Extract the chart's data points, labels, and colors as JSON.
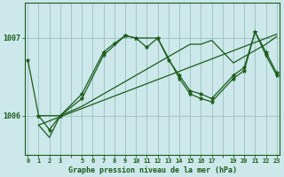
{
  "bg_color": "#cce8ea",
  "grid_color": "#9bbfbf",
  "line_color": "#1a5c1a",
  "marker_color": "#1a5c1a",
  "xlabel": "Graphe pression niveau de la mer (hPa)",
  "xlabel_color": "#1a5c1a",
  "yticks": [
    1006,
    1007
  ],
  "xtick_labels": [
    "0",
    "1",
    "2",
    "3",
    "",
    "5",
    "6",
    "7",
    "8",
    "9",
    "10",
    "11",
    "12",
    "13",
    "14",
    "15",
    "16",
    "17",
    "",
    "19",
    "20",
    "21",
    "22",
    "23"
  ],
  "xtick_positions": [
    0,
    1,
    2,
    3,
    4,
    5,
    6,
    7,
    8,
    9,
    10,
    11,
    12,
    13,
    14,
    15,
    16,
    17,
    18,
    19,
    20,
    21,
    22,
    23
  ],
  "xlim": [
    -0.3,
    23.3
  ],
  "ylim": [
    1005.5,
    1007.45
  ],
  "s1_x": [
    0,
    1,
    2,
    3,
    5,
    7,
    8,
    9,
    10,
    11,
    12,
    13,
    14,
    15,
    16,
    17,
    19,
    20,
    21,
    22,
    23
  ],
  "s1_y": [
    1006.72,
    1006.0,
    1005.82,
    1006.0,
    1006.28,
    1006.82,
    1006.93,
    1007.03,
    1007.0,
    1006.88,
    1007.0,
    1006.72,
    1006.52,
    1006.32,
    1006.28,
    1006.22,
    1006.52,
    1006.62,
    1007.08,
    1006.82,
    1006.55
  ],
  "s2_x": [
    1,
    2,
    3,
    5,
    7,
    8,
    9,
    10,
    11,
    12,
    13,
    14,
    15,
    16,
    17,
    19,
    20,
    21,
    22,
    23
  ],
  "s2_y": [
    1005.88,
    1005.72,
    1006.0,
    1006.12,
    1006.28,
    1006.36,
    1006.44,
    1006.52,
    1006.6,
    1006.68,
    1006.76,
    1006.84,
    1006.92,
    1006.92,
    1006.97,
    1006.68,
    1006.76,
    1006.84,
    1006.92,
    1007.02
  ],
  "s3_x": [
    1,
    3,
    5,
    7,
    9,
    10,
    12,
    14,
    15,
    16,
    17,
    19,
    20,
    21,
    22,
    23
  ],
  "s3_y": [
    1006.0,
    1006.0,
    1006.22,
    1006.78,
    1007.03,
    1007.0,
    1007.0,
    1006.48,
    1006.28,
    1006.22,
    1006.18,
    1006.48,
    1006.58,
    1007.08,
    1006.78,
    1006.52
  ],
  "trend_x": [
    1,
    23
  ],
  "trend_y": [
    1005.88,
    1007.05
  ]
}
